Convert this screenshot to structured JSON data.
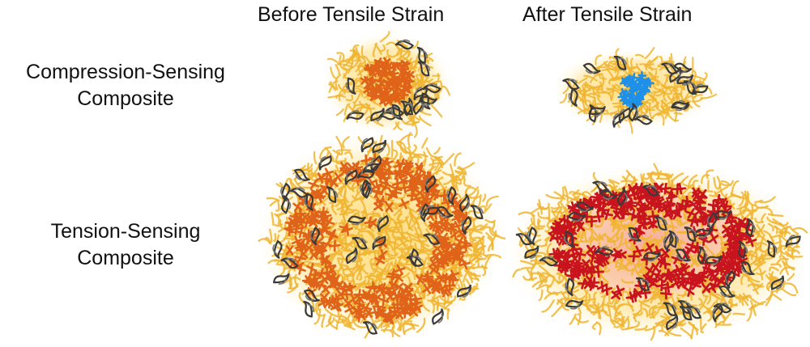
{
  "columns": {
    "before": "Before Tensile Strain",
    "after": "After Tensile Strain"
  },
  "rows": {
    "compression": {
      "line1": "Compression-Sensing",
      "line2": "Composite"
    },
    "tension": {
      "line1": "Tension-Sensing",
      "line2": "Composite"
    }
  },
  "colors": {
    "protein_shell": "#f0b531",
    "protein_dark": "#3a3a3a",
    "core_before": "#e0631a",
    "compression_after_core": "#1e90e8",
    "tension_after_core": "#c8141e",
    "tension_after_glow": "#f3a0a0"
  }
}
